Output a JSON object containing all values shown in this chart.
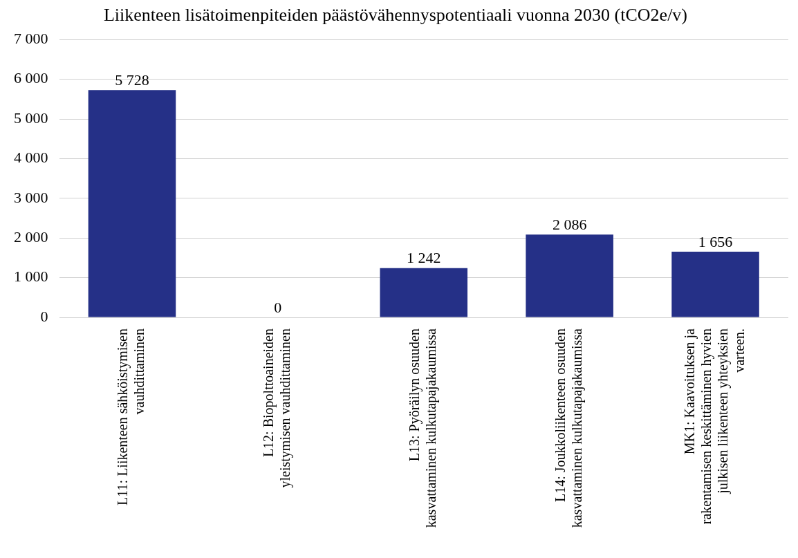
{
  "chart_data": {
    "type": "bar",
    "title": "Liikenteen lisätoimenpiteiden päästövähennyspotentiaali vuonna 2030 (tCO2e/v)",
    "categories": [
      "L11: Liikenteen sähköistymisen vauhdittaminen",
      "L12: Biopolttoaineiden yleistymisen vauhdittaminen",
      "L13: Pyöräilyn osuuden kasvattaminen kulkutapajakaumissa",
      "L14: Joukkoliikenteen osuuden kasvattaminen kulkutapajakaumissa",
      "MK1: Kaavoituksen ja rakentamisen keskittäminen hyvien julkisen liikenteen yhteyksien varteen."
    ],
    "values": [
      5728,
      0,
      1242,
      2086,
      1656
    ],
    "value_labels": [
      "5 728",
      "0",
      "1 242",
      "2 086",
      "1 656"
    ],
    "color": "#253087",
    "ylim": [
      0,
      7000
    ],
    "yticks": [
      {
        "value": 0,
        "label": "0"
      },
      {
        "value": 1000,
        "label": "1 000"
      },
      {
        "value": 2000,
        "label": "2 000"
      },
      {
        "value": 3000,
        "label": "3 000"
      },
      {
        "value": 4000,
        "label": "4 000"
      },
      {
        "value": 5000,
        "label": "5 000"
      },
      {
        "value": 6000,
        "label": "6 000"
      },
      {
        "value": 7000,
        "label": "7 000"
      }
    ],
    "grid": "y"
  }
}
